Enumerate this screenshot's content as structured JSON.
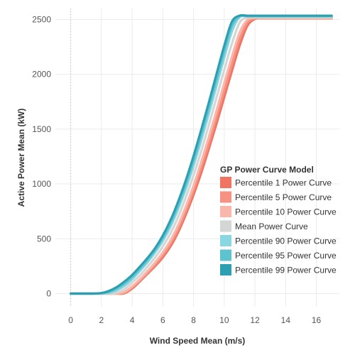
{
  "chart_data": {
    "type": "line",
    "title": "",
    "xlabel": "Wind Speed Mean (m/s)",
    "ylabel": "Active Power Mean (kW)",
    "xlim": [
      -1,
      17.5
    ],
    "ylim": [
      -120,
      2600
    ],
    "xticks": [
      0,
      2,
      4,
      6,
      8,
      10,
      12,
      14,
      16
    ],
    "yticks": [
      0,
      500,
      1000,
      1500,
      2000,
      2500
    ],
    "grid": true,
    "legend": {
      "title": "GP Power Curve Model",
      "placement": "right"
    },
    "x": [
      0,
      1,
      1.5,
      2,
      2.5,
      3,
      3.5,
      4,
      4.5,
      5,
      5.5,
      6,
      6.5,
      7,
      7.5,
      8,
      8.5,
      9,
      9.5,
      10,
      10.5,
      11,
      11.5,
      12,
      12.5,
      13,
      14,
      15,
      16,
      17
    ],
    "series": [
      {
        "name": "Percentile 1 Power Curve",
        "color": "#f07461",
        "values": [
          0,
          0,
          0,
          0,
          0,
          0,
          2,
          45,
          110,
          180,
          250,
          330,
          430,
          560,
          720,
          900,
          1100,
          1320,
          1550,
          1790,
          2030,
          2260,
          2440,
          2505,
          2510,
          2510,
          2510,
          2510,
          2510,
          2510
        ]
      },
      {
        "name": "Percentile 5 Power Curve",
        "color": "#f59282",
        "values": [
          0,
          0,
          0,
          0,
          0,
          0,
          8,
          55,
          120,
          190,
          265,
          350,
          455,
          590,
          755,
          940,
          1150,
          1370,
          1610,
          1850,
          2090,
          2320,
          2470,
          2510,
          2512,
          2512,
          2512,
          2512,
          2512,
          2512
        ]
      },
      {
        "name": "Percentile 10 Power Curve",
        "color": "#f9b6aa",
        "values": [
          0,
          0,
          0,
          0,
          0,
          2,
          15,
          65,
          130,
          205,
          285,
          375,
          485,
          625,
          795,
          985,
          1200,
          1430,
          1670,
          1920,
          2160,
          2380,
          2495,
          2515,
          2515,
          2515,
          2515,
          2515,
          2515,
          2515
        ]
      },
      {
        "name": "Mean Power Curve",
        "color": "#d3d6d5",
        "values": [
          0,
          0,
          0,
          0,
          2,
          10,
          40,
          100,
          165,
          245,
          330,
          430,
          550,
          700,
          880,
          1080,
          1300,
          1540,
          1790,
          2040,
          2280,
          2470,
          2520,
          2520,
          2520,
          2520,
          2520,
          2520,
          2520,
          2520
        ]
      },
      {
        "name": "Percentile 90 Power Curve",
        "color": "#8ad7e4",
        "values": [
          0,
          0,
          0,
          0,
          5,
          30,
          70,
          130,
          205,
          285,
          375,
          480,
          610,
          770,
          955,
          1165,
          1395,
          1640,
          1895,
          2150,
          2390,
          2520,
          2528,
          2528,
          2528,
          2528,
          2528,
          2528,
          2528,
          2528
        ]
      },
      {
        "name": "Percentile 95 Power Curve",
        "color": "#5cc3cf",
        "values": [
          0,
          0,
          0,
          3,
          15,
          45,
          90,
          150,
          225,
          305,
          395,
          505,
          640,
          805,
          995,
          1210,
          1445,
          1695,
          1950,
          2205,
          2440,
          2530,
          2530,
          2530,
          2530,
          2530,
          2530,
          2530,
          2530,
          2530
        ]
      },
      {
        "name": "Percentile 99 Power Curve",
        "color": "#2e9fb0",
        "values": [
          0,
          0,
          0,
          5,
          25,
          60,
          110,
          170,
          245,
          325,
          415,
          530,
          670,
          840,
          1035,
          1255,
          1495,
          1745,
          2005,
          2260,
          2480,
          2535,
          2535,
          2535,
          2535,
          2535,
          2535,
          2535,
          2535,
          2535
        ]
      }
    ]
  }
}
